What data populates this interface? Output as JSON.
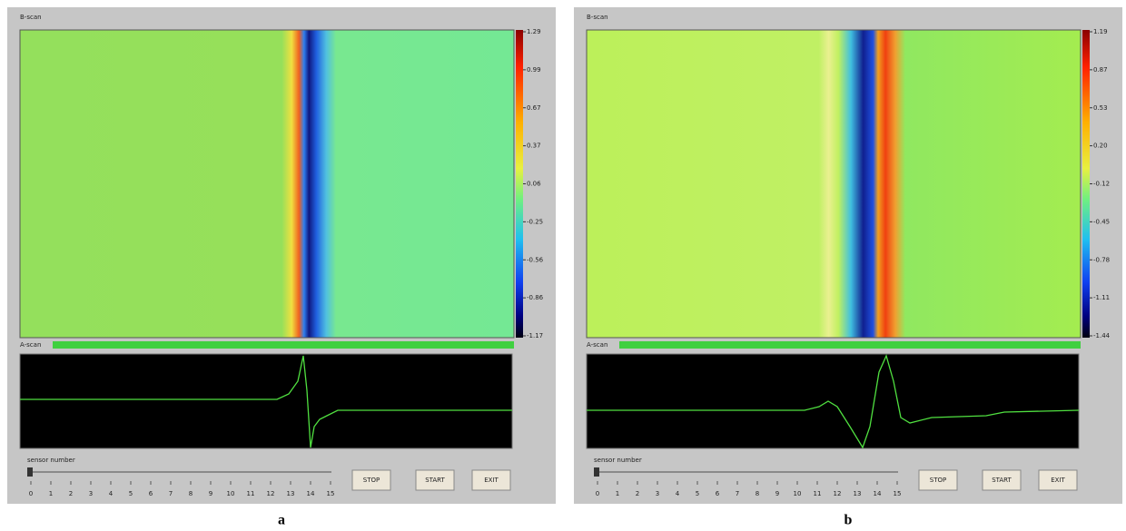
{
  "panels": [
    {
      "title": "B-scan",
      "colorbar_labels": [
        "1.29",
        "0.99",
        "0.67",
        "0.37",
        "0.06",
        "-0.25",
        "-0.56",
        "-0.86",
        "-1.17"
      ],
      "ascan_label": "A-scan",
      "slider_label": "sensor number",
      "slider_ticks": [
        0,
        1,
        2,
        3,
        4,
        5,
        6,
        7,
        8,
        9,
        10,
        11,
        12,
        13,
        14,
        15
      ],
      "buttons": [
        "STOP",
        "START",
        "EXIT"
      ],
      "caption": "a"
    },
    {
      "title": "B-scan",
      "colorbar_labels": [
        "1.19",
        "0.87",
        "0.53",
        "0.20",
        "-0.12",
        "-0.45",
        "-0.78",
        "-1.11",
        "-1.44"
      ],
      "ascan_label": "A-scan",
      "slider_label": "sensor number",
      "slider_ticks": [
        0,
        1,
        2,
        3,
        4,
        5,
        6,
        7,
        8,
        9,
        10,
        11,
        12,
        13,
        14,
        15
      ],
      "buttons": [
        "STOP",
        "START",
        "EXIT"
      ],
      "caption": "b"
    }
  ]
}
